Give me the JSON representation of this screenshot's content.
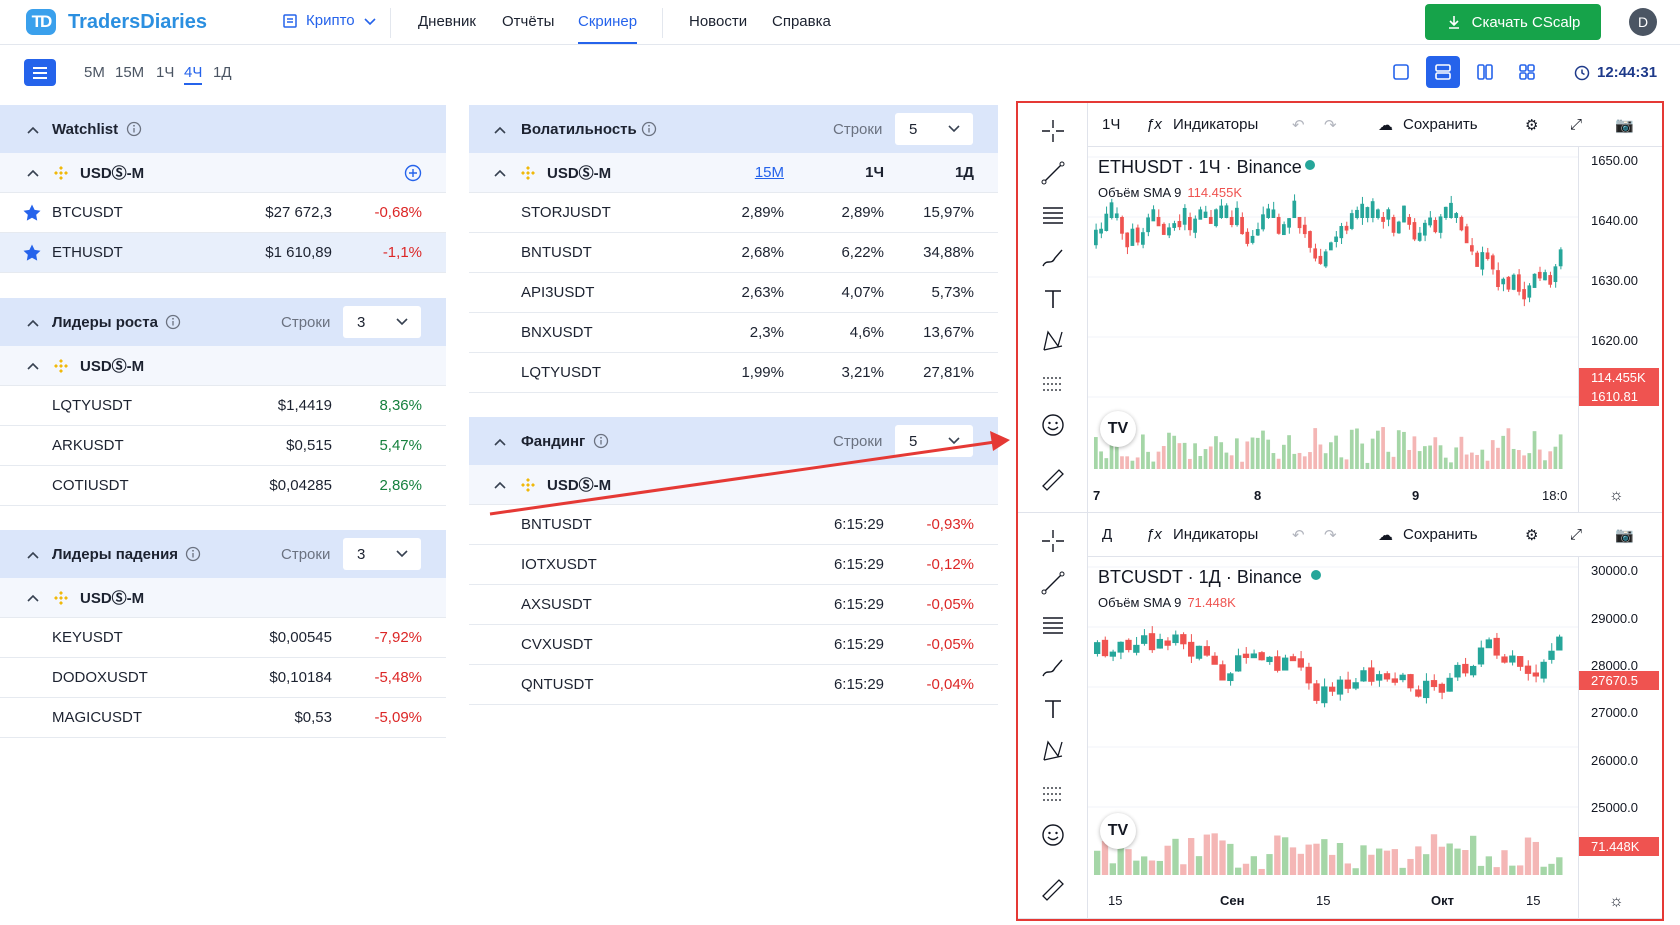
{
  "app": {
    "logo_mark": "TD",
    "name": "TradersDiaries"
  },
  "nav": {
    "market": "Крипто",
    "links": [
      "Дневник",
      "Отчёты",
      "Скринер",
      "Новости",
      "Справка"
    ],
    "active": "Скринер",
    "download": "Скачать CScalp",
    "avatar": "D"
  },
  "timeframes": {
    "items": [
      "5М",
      "15М",
      "1Ч",
      "4Ч",
      "1Д"
    ],
    "active": "4Ч"
  },
  "clock": "12:44:31",
  "watchlist": {
    "title": "Watchlist",
    "exchange": "USDⓈ-M",
    "rows": [
      {
        "symbol": "BTCUSDT",
        "price": "$27 672,3",
        "change": "-0,68%"
      },
      {
        "symbol": "ETHUSDT",
        "price": "$1 610,89",
        "change": "-1,1%"
      }
    ]
  },
  "gainers": {
    "title": "Лидеры роста",
    "rows_label": "Строки",
    "rows_value": "3",
    "exchange": "USDⓈ-M",
    "rows": [
      {
        "symbol": "LQTYUSDT",
        "price": "$1,4419",
        "change": "8,36%"
      },
      {
        "symbol": "ARKUSDT",
        "price": "$0,515",
        "change": "5,47%"
      },
      {
        "symbol": "COTIUSDT",
        "price": "$0,04285",
        "change": "2,86%"
      }
    ]
  },
  "losers": {
    "title": "Лидеры падения",
    "rows_label": "Строки",
    "rows_value": "3",
    "exchange": "USDⓈ-M",
    "rows": [
      {
        "symbol": "KEYUSDT",
        "price": "$0,00545",
        "change": "-7,92%"
      },
      {
        "symbol": "DODOXUSDT",
        "price": "$0,10184",
        "change": "-5,48%"
      },
      {
        "symbol": "MAGICUSDT",
        "price": "$0,53",
        "change": "-5,09%"
      }
    ]
  },
  "volatility": {
    "title": "Волатильность",
    "rows_label": "Строки",
    "rows_value": "5",
    "exchange": "USDⓈ-M",
    "cols": [
      "15М",
      "1Ч",
      "1Д"
    ],
    "rows": [
      {
        "symbol": "STORJUSDT",
        "a": "2,89%",
        "b": "2,89%",
        "c": "15,97%"
      },
      {
        "symbol": "BNTUSDT",
        "a": "2,68%",
        "b": "6,22%",
        "c": "34,88%"
      },
      {
        "symbol": "API3USDT",
        "a": "2,63%",
        "b": "4,07%",
        "c": "5,73%"
      },
      {
        "symbol": "BNXUSDT",
        "a": "2,3%",
        "b": "4,6%",
        "c": "13,67%"
      },
      {
        "symbol": "LQTYUSDT",
        "a": "1,99%",
        "b": "3,21%",
        "c": "27,81%"
      }
    ]
  },
  "funding": {
    "title": "Фандинг",
    "rows_label": "Строки",
    "rows_value": "5",
    "exchange": "USDⓈ-M",
    "rows": [
      {
        "symbol": "BNTUSDT",
        "time": "6:15:29",
        "rate": "-0,93%"
      },
      {
        "symbol": "IOTXUSDT",
        "time": "6:15:29",
        "rate": "-0,12%"
      },
      {
        "symbol": "AXSUSDT",
        "time": "6:15:29",
        "rate": "-0,05%"
      },
      {
        "symbol": "CVXUSDT",
        "time": "6:15:29",
        "rate": "-0,05%"
      },
      {
        "symbol": "QNTUSDT",
        "time": "6:15:29",
        "rate": "-0,04%"
      }
    ]
  },
  "chart_top": {
    "interval": "1Ч",
    "indicators": "Индикаторы",
    "save": "Сохранить",
    "title": "ETHUSDT · 1Ч · Binance",
    "vol_label": "Объём SMA 9",
    "vol_value": "114.455K",
    "yticks": [
      "1650.00",
      "1640.00",
      "1630.00",
      "1620.00"
    ],
    "price_tag": "1610.81",
    "vol_tag": "114.455K",
    "xticks": [
      "7",
      "8",
      "9",
      "18:0"
    ]
  },
  "chart_bottom": {
    "interval": "Д",
    "indicators": "Индикаторы",
    "save": "Сохранить",
    "title": "BTCUSDT · 1Д · Binance",
    "vol_label": "Объём SMA 9",
    "vol_value": "71.448K",
    "yticks": [
      "30000.0",
      "29000.0",
      "28000.0",
      "27000.0",
      "26000.0",
      "25000.0"
    ],
    "price_tag": "27670.5",
    "vol_tag": "71.448K",
    "xticks": [
      "15",
      "Сен",
      "15",
      "Окт",
      "15"
    ]
  },
  "colors": {
    "accent": "#2563eb",
    "up": "#26a69a",
    "down": "#ef5350",
    "highlight": "#e53935"
  }
}
